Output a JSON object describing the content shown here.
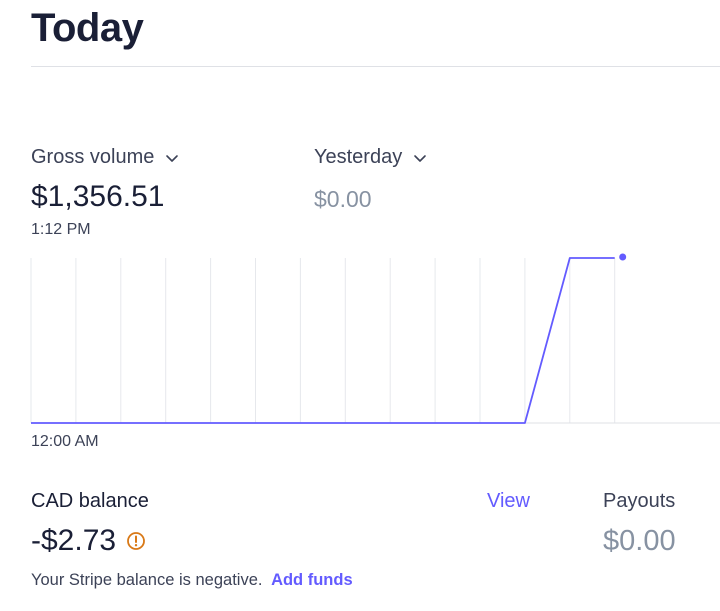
{
  "header": {
    "title": "Today"
  },
  "metrics": {
    "gross_volume": {
      "label": "Gross volume",
      "value": "$1,356.51",
      "time": "1:12 PM"
    },
    "comparison": {
      "label": "Yesterday",
      "value": "$0.00"
    }
  },
  "chart_data": {
    "type": "line",
    "xlabel": "",
    "ylabel": "",
    "x_start_label": "12:00 AM",
    "series": [
      {
        "values": [
          0,
          0,
          0,
          0,
          0,
          0,
          0,
          0,
          0,
          0,
          0,
          0,
          1356.51,
          1356.51
        ]
      }
    ],
    "hour_marks": [
      0,
      1,
      2,
      3,
      4,
      5,
      6,
      7,
      8,
      9,
      10,
      11,
      12,
      13
    ],
    "ylim": [
      0,
      1356.51
    ],
    "grid": true,
    "color": "#635bff"
  },
  "balance": {
    "label": "CAD balance",
    "view_label": "View",
    "value": "-$2.73",
    "note": "Your Stripe balance is negative.",
    "add_funds_label": "Add funds",
    "warning_color": "#d97917"
  },
  "payouts": {
    "label": "Payouts",
    "value": "$0.00"
  }
}
